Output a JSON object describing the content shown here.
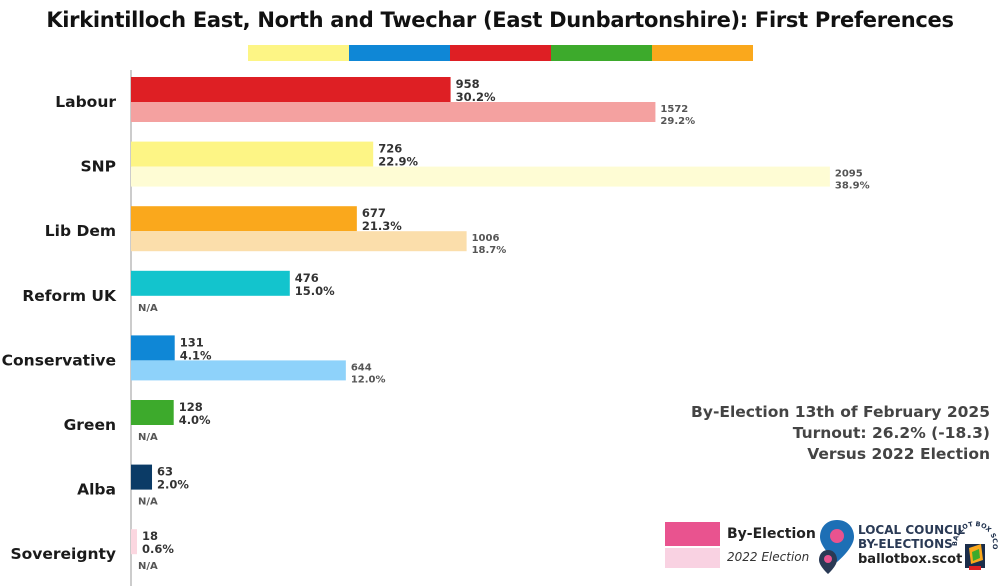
{
  "title": "Kirkintilloch East, North and Twechar (East Dunbartonshire): First Preferences",
  "header_strip_colors": [
    "#fdf585",
    "#0f87d6",
    "#de1f24",
    "#3daa2c",
    "#faa81c"
  ],
  "chart_data": {
    "type": "bar",
    "orientation": "horizontal",
    "title": "Kirkintilloch East, North and Twechar (East Dunbartonshire): First Preferences",
    "categories": [
      "Labour",
      "SNP",
      "Lib Dem",
      "Reform UK",
      "Conservative",
      "Green",
      "Alba",
      "Sovereignty"
    ],
    "series": [
      {
        "name": "By-Election",
        "values": [
          958,
          726,
          677,
          476,
          131,
          128,
          63,
          18
        ],
        "labels": [
          "958",
          "726",
          "677",
          "476",
          "131",
          "128",
          "63",
          "18"
        ],
        "percent_labels": [
          "30.2%",
          "22.9%",
          "21.3%",
          "15.0%",
          "4.1%",
          "4.0%",
          "2.0%",
          "0.6%"
        ],
        "colors": [
          "#de1f24",
          "#fdf585",
          "#faa81c",
          "#13c4cd",
          "#0f87d6",
          "#3daa2c",
          "#0b3b66",
          "#fbd7e0"
        ]
      },
      {
        "name": "2022 Election",
        "values": [
          1572,
          2095,
          1006,
          null,
          644,
          null,
          null,
          null
        ],
        "labels": [
          "1572",
          "2095",
          "1006",
          "N/A",
          "644",
          "N/A",
          "N/A",
          "N/A"
        ],
        "percent_labels": [
          "29.2%",
          "38.9%",
          "18.7%",
          "",
          "12.0%",
          "",
          "",
          ""
        ],
        "colors": [
          "#f4a1a0",
          "#fefcd4",
          "#fbdeab",
          "#a9ecef",
          "#8ed2fa",
          "#b3e0ac",
          "#9fb4c8",
          "#fdebef"
        ]
      }
    ],
    "xlim": [
      0,
      2095
    ],
    "grid": false
  },
  "info": {
    "line1": "By-Election 13th of February 2025",
    "line2": "Turnout: 26.2% (-18.3)",
    "line3": "Versus 2022 Election"
  },
  "legend": {
    "by_election": "By-Election",
    "prev_election": "2022 Election",
    "by_election_color": "#e9538f",
    "prev_election_color": "#f9d2e2"
  },
  "branding": {
    "line1": "LOCAL COUNCIL",
    "line2": "BY-ELECTIONS",
    "line3": "ballotbox.scot",
    "badge_text": "BALLOT BOX SCOTLAND"
  }
}
